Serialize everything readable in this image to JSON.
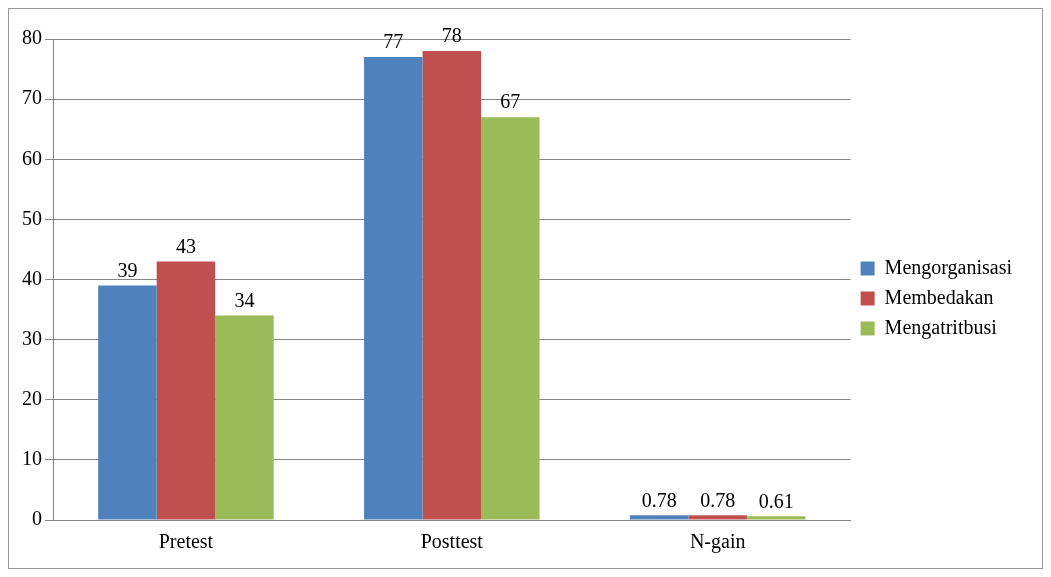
{
  "chart_data": {
    "type": "bar",
    "categories": [
      "Pretest",
      "Posttest",
      "N-gain"
    ],
    "series": [
      {
        "name": "Mengorganisasi",
        "color": "#4f81bd",
        "values": [
          39,
          77,
          0.78
        ]
      },
      {
        "name": "Membedakan",
        "color": "#c0504d",
        "values": [
          43,
          78,
          0.78
        ]
      },
      {
        "name": "Mengatritbusi",
        "color": "#9bbb59",
        "values": [
          34,
          67,
          0.61
        ]
      }
    ],
    "ylim": [
      0,
      80
    ],
    "yticks": [
      0,
      10,
      20,
      30,
      40,
      50,
      60,
      70,
      80
    ],
    "grid": "y",
    "legend": "right",
    "data_labels": true
  }
}
